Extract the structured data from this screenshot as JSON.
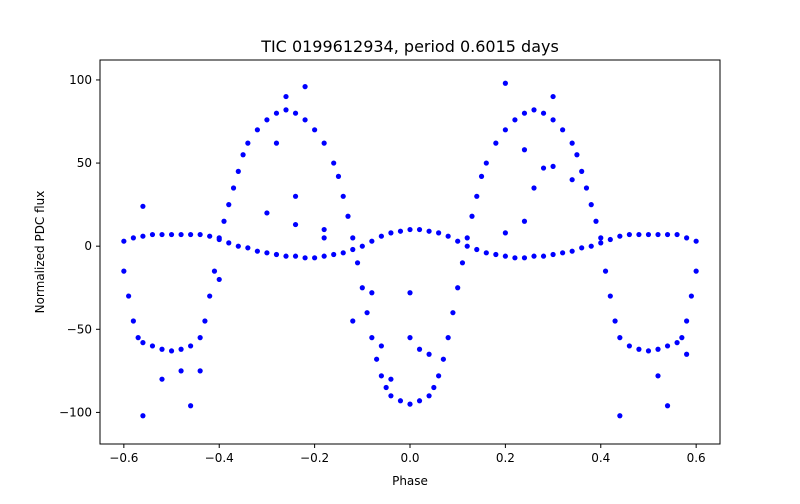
{
  "chart_data": {
    "type": "scatter",
    "title": "TIC 0199612934, period 0.6015 days",
    "xlabel": "Phase",
    "ylabel": "Normalized PDC flux",
    "xlim": [
      -0.65,
      0.65
    ],
    "ylim": [
      -119,
      112
    ],
    "xticks": [
      -0.6,
      -0.4,
      -0.2,
      0.0,
      0.2,
      0.4,
      0.6
    ],
    "xtick_labels": [
      "−0.6",
      "−0.4",
      "−0.2",
      "0.0",
      "0.2",
      "0.4",
      "0.6"
    ],
    "yticks": [
      -100,
      -50,
      0,
      50,
      100
    ],
    "ytick_labels": [
      "−100",
      "−50",
      "0",
      "50",
      "100"
    ],
    "grid": false,
    "marker_color": "#0000ff",
    "series": [
      {
        "points": [
          [
            -0.6,
            3
          ],
          [
            -0.58,
            5
          ],
          [
            -0.56,
            6
          ],
          [
            -0.54,
            7
          ],
          [
            -0.52,
            7
          ],
          [
            -0.5,
            7
          ],
          [
            -0.48,
            7
          ],
          [
            -0.46,
            7
          ],
          [
            -0.44,
            7
          ],
          [
            -0.42,
            6
          ],
          [
            -0.4,
            4
          ],
          [
            -0.38,
            2
          ],
          [
            -0.36,
            0
          ],
          [
            -0.34,
            -1
          ],
          [
            -0.32,
            -3
          ],
          [
            -0.3,
            -4
          ],
          [
            -0.28,
            -5
          ],
          [
            -0.26,
            -6
          ],
          [
            -0.24,
            -6
          ],
          [
            -0.22,
            -7
          ],
          [
            -0.2,
            -7
          ],
          [
            -0.18,
            -6
          ],
          [
            -0.16,
            -5
          ],
          [
            -0.14,
            -4
          ],
          [
            -0.12,
            -2
          ],
          [
            -0.1,
            0
          ],
          [
            -0.08,
            3
          ],
          [
            -0.06,
            6
          ],
          [
            -0.04,
            8
          ],
          [
            -0.02,
            9
          ],
          [
            0.0,
            10
          ],
          [
            0.02,
            10
          ],
          [
            0.04,
            9
          ],
          [
            0.06,
            8
          ],
          [
            0.08,
            6
          ],
          [
            0.1,
            3
          ],
          [
            0.12,
            0
          ],
          [
            0.14,
            -2
          ],
          [
            0.16,
            -4
          ],
          [
            0.18,
            -5
          ],
          [
            0.2,
            -6
          ],
          [
            0.22,
            -7
          ],
          [
            0.24,
            -7
          ],
          [
            0.26,
            -6
          ],
          [
            0.28,
            -6
          ],
          [
            0.3,
            -5
          ],
          [
            0.32,
            -4
          ],
          [
            0.34,
            -3
          ],
          [
            0.36,
            -1
          ],
          [
            0.38,
            0
          ],
          [
            0.4,
            2
          ],
          [
            0.42,
            4
          ],
          [
            0.44,
            6
          ],
          [
            0.46,
            7
          ],
          [
            0.48,
            7
          ],
          [
            0.5,
            7
          ],
          [
            0.52,
            7
          ],
          [
            0.54,
            7
          ],
          [
            0.56,
            7
          ],
          [
            0.58,
            5
          ],
          [
            0.6,
            3
          ],
          [
            -0.6,
            -15
          ],
          [
            -0.59,
            -30
          ],
          [
            -0.58,
            -45
          ],
          [
            -0.57,
            -55
          ],
          [
            -0.56,
            -58
          ],
          [
            -0.54,
            -60
          ],
          [
            -0.52,
            -62
          ],
          [
            -0.5,
            -63
          ],
          [
            -0.48,
            -62
          ],
          [
            -0.46,
            -60
          ],
          [
            -0.44,
            -55
          ],
          [
            -0.43,
            -45
          ],
          [
            -0.42,
            -30
          ],
          [
            -0.41,
            -15
          ],
          [
            -0.4,
            5
          ],
          [
            -0.39,
            15
          ],
          [
            -0.38,
            25
          ],
          [
            -0.37,
            35
          ],
          [
            -0.36,
            45
          ],
          [
            -0.35,
            55
          ],
          [
            -0.34,
            62
          ],
          [
            -0.32,
            70
          ],
          [
            -0.3,
            76
          ],
          [
            -0.28,
            80
          ],
          [
            -0.26,
            82
          ],
          [
            -0.24,
            80
          ],
          [
            -0.22,
            76
          ],
          [
            -0.2,
            70
          ],
          [
            -0.18,
            62
          ],
          [
            -0.16,
            50
          ],
          [
            -0.15,
            42
          ],
          [
            -0.14,
            30
          ],
          [
            -0.13,
            18
          ],
          [
            -0.12,
            5
          ],
          [
            -0.11,
            -10
          ],
          [
            -0.1,
            -25
          ],
          [
            -0.09,
            -40
          ],
          [
            -0.08,
            -55
          ],
          [
            -0.07,
            -68
          ],
          [
            -0.06,
            -78
          ],
          [
            -0.05,
            -85
          ],
          [
            -0.04,
            -90
          ],
          [
            -0.02,
            -93
          ],
          [
            0.0,
            -95
          ],
          [
            0.02,
            -93
          ],
          [
            0.04,
            -90
          ],
          [
            0.05,
            -85
          ],
          [
            0.06,
            -78
          ],
          [
            0.07,
            -68
          ],
          [
            0.08,
            -55
          ],
          [
            0.09,
            -40
          ],
          [
            0.1,
            -25
          ],
          [
            0.11,
            -10
          ],
          [
            0.12,
            5
          ],
          [
            0.13,
            18
          ],
          [
            0.14,
            30
          ],
          [
            0.15,
            42
          ],
          [
            0.16,
            50
          ],
          [
            0.18,
            62
          ],
          [
            0.2,
            70
          ],
          [
            0.22,
            76
          ],
          [
            0.24,
            80
          ],
          [
            0.26,
            82
          ],
          [
            0.28,
            80
          ],
          [
            0.3,
            76
          ],
          [
            0.32,
            70
          ],
          [
            0.34,
            62
          ],
          [
            0.35,
            55
          ],
          [
            0.36,
            45
          ],
          [
            0.37,
            35
          ],
          [
            0.38,
            25
          ],
          [
            0.39,
            15
          ],
          [
            0.4,
            5
          ],
          [
            0.41,
            -15
          ],
          [
            0.42,
            -30
          ],
          [
            0.43,
            -45
          ],
          [
            0.44,
            -55
          ],
          [
            0.46,
            -60
          ],
          [
            0.48,
            -62
          ],
          [
            0.5,
            -63
          ],
          [
            0.52,
            -62
          ],
          [
            0.54,
            -60
          ],
          [
            0.56,
            -58
          ],
          [
            0.57,
            -55
          ],
          [
            0.58,
            -45
          ],
          [
            0.59,
            -30
          ],
          [
            0.6,
            -15
          ],
          [
            -0.56,
            24
          ],
          [
            -0.56,
            -102
          ],
          [
            -0.46,
            -96
          ],
          [
            -0.44,
            -75
          ],
          [
            -0.28,
            62
          ],
          [
            -0.24,
            30
          ],
          [
            -0.24,
            13
          ],
          [
            -0.22,
            96
          ],
          [
            -0.18,
            5
          ],
          [
            -0.18,
            10
          ],
          [
            -0.12,
            -45
          ],
          [
            -0.08,
            -28
          ],
          [
            -0.06,
            -60
          ],
          [
            -0.04,
            -80
          ],
          [
            0.0,
            -28
          ],
          [
            0.0,
            -55
          ],
          [
            0.02,
            -62
          ],
          [
            0.04,
            -65
          ],
          [
            0.2,
            98
          ],
          [
            0.24,
            58
          ],
          [
            0.24,
            15
          ],
          [
            0.26,
            35
          ],
          [
            0.28,
            47
          ],
          [
            0.3,
            48
          ],
          [
            0.44,
            -102
          ],
          [
            0.52,
            -78
          ],
          [
            0.54,
            -96
          ],
          [
            0.58,
            -65
          ],
          [
            -0.52,
            -80
          ],
          [
            -0.48,
            -75
          ],
          [
            0.34,
            40
          ],
          [
            -0.3,
            20
          ],
          [
            0.2,
            8
          ],
          [
            -0.26,
            90
          ],
          [
            0.3,
            90
          ],
          [
            -0.4,
            -20
          ]
        ]
      }
    ]
  }
}
